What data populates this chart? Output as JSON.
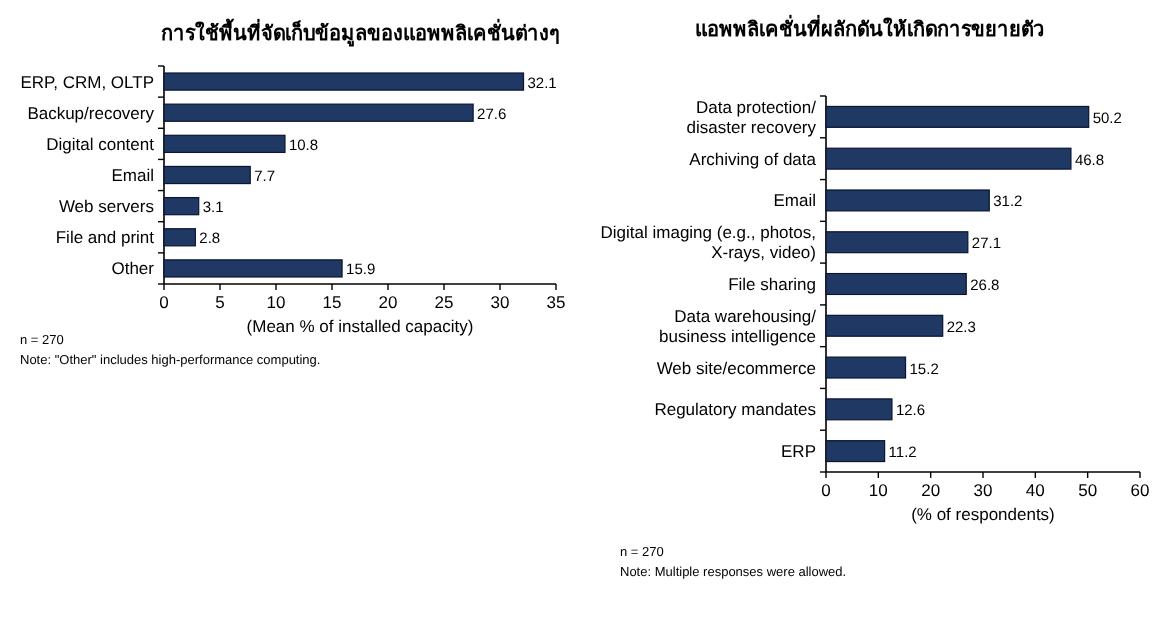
{
  "chart_data": [
    {
      "type": "bar",
      "orientation": "horizontal",
      "title": "การใช้พื้นที่จัดเก็บข้อมูลของแอพพลิเคชั่นต่างๆ",
      "xlabel": "(Mean % of installed capacity)",
      "categories": [
        "ERP, CRM, OLTP",
        "Backup/recovery",
        "Digital content",
        "Email",
        "Web servers",
        "File and print",
        "Other"
      ],
      "values": [
        32.1,
        27.6,
        10.8,
        7.7,
        3.1,
        2.8,
        15.9
      ],
      "color": "#1f3864",
      "data_labels": true,
      "xlim": [
        0,
        35
      ],
      "xticks": [
        0,
        5,
        10,
        15,
        20,
        25,
        30,
        35
      ],
      "annotations": [
        "n = 270",
        "Note: \"Other\" includes high-performance computing."
      ]
    },
    {
      "type": "bar",
      "orientation": "horizontal",
      "title": "แอพพลิเคชั่นที่ผลักดันให้เกิดการขยายตัว",
      "xlabel": "(% of respondents)",
      "categories": [
        "Data protection/\ndisaster recovery",
        "Archiving of data",
        "Email",
        "Digital imaging (e.g., photos,\nX-rays, video)",
        "File sharing",
        "Data warehousing/\nbusiness intelligence",
        "Web site/ecommerce",
        "Regulatory mandates",
        "ERP"
      ],
      "values": [
        50.2,
        46.8,
        31.2,
        27.1,
        26.8,
        22.3,
        15.2,
        12.6,
        11.2
      ],
      "color": "#1f3864",
      "data_labels": true,
      "xlim": [
        0,
        60
      ],
      "xticks": [
        0,
        10,
        20,
        30,
        40,
        50,
        60
      ],
      "annotations": [
        "n = 270",
        "Note: Multiple responses were allowed."
      ]
    }
  ]
}
